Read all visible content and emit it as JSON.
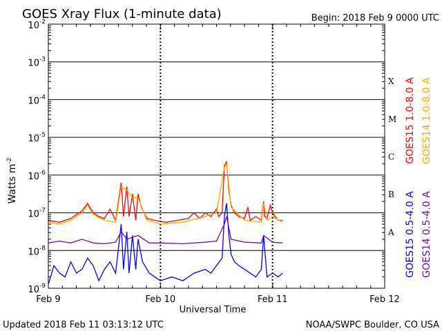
{
  "chart_data": {
    "type": "line",
    "title": "GOES Xray Flux (1-minute data)",
    "begin": "Begin:  2018 Feb 9 0000 UTC",
    "ylabel": "Watts m",
    "ylabel_sup": "-2",
    "xlabel": "Universal Time",
    "updated": "Updated 2018 Feb 11 03:13:12 UTC",
    "credit": "NOAA/SWPC Boulder, CO USA",
    "yscale": "log",
    "ylim_exp": [
      -9,
      -2
    ],
    "xlim_days": [
      0,
      3
    ],
    "y_ticks": [
      {
        "exp": -9,
        "label": "-9"
      },
      {
        "exp": -8,
        "label": "-8"
      },
      {
        "exp": -7,
        "label": "-7"
      },
      {
        "exp": -6,
        "label": "-6"
      },
      {
        "exp": -5,
        "label": "-5"
      },
      {
        "exp": -4,
        "label": "-4"
      },
      {
        "exp": -3,
        "label": "-3"
      },
      {
        "exp": -2,
        "label": "-2"
      }
    ],
    "x_ticks": [
      {
        "day": 0,
        "label": "Feb 9"
      },
      {
        "day": 1,
        "label": "Feb 10"
      },
      {
        "day": 2,
        "label": "Feb 11"
      },
      {
        "day": 3,
        "label": "Feb 12"
      }
    ],
    "flare_classes": [
      {
        "label": "A",
        "exp": -7.5
      },
      {
        "label": "B",
        "exp": -6.5
      },
      {
        "label": "C",
        "exp": -5.5
      },
      {
        "label": "M",
        "exp": -4.5
      },
      {
        "label": "X",
        "exp": -3.5
      }
    ],
    "series": [
      {
        "name": "GOES15 1.0-8.0 A",
        "color": "#ff0000",
        "points": [
          [
            0,
            -7.2
          ],
          [
            0.1,
            -7.25
          ],
          [
            0.2,
            -7.15
          ],
          [
            0.3,
            -6.95
          ],
          [
            0.35,
            -6.75
          ],
          [
            0.4,
            -7.0
          ],
          [
            0.45,
            -7.1
          ],
          [
            0.5,
            -7.15
          ],
          [
            0.55,
            -6.9
          ],
          [
            0.6,
            -7.2
          ],
          [
            0.65,
            -6.2
          ],
          [
            0.67,
            -7.1
          ],
          [
            0.7,
            -6.3
          ],
          [
            0.72,
            -7.1
          ],
          [
            0.75,
            -6.5
          ],
          [
            0.78,
            -7.2
          ],
          [
            0.8,
            -6.5
          ],
          [
            0.83,
            -6.85
          ],
          [
            0.88,
            -7.15
          ],
          [
            0.95,
            -7.2
          ],
          [
            1.05,
            -7.25
          ],
          [
            1.15,
            -7.2
          ],
          [
            1.25,
            -7.15
          ],
          [
            1.3,
            -7.0
          ],
          [
            1.35,
            -7.15
          ],
          [
            1.4,
            -7.0
          ],
          [
            1.45,
            -7.1
          ],
          [
            1.5,
            -6.9
          ],
          [
            1.52,
            -7.1
          ],
          [
            1.55,
            -7.0
          ],
          [
            1.57,
            -5.75
          ],
          [
            1.59,
            -5.65
          ],
          [
            1.61,
            -6.4
          ],
          [
            1.63,
            -6.8
          ],
          [
            1.66,
            -7.0
          ],
          [
            1.7,
            -7.1
          ],
          [
            1.75,
            -7.15
          ],
          [
            1.78,
            -6.85
          ],
          [
            1.8,
            -7.2
          ],
          [
            1.85,
            -7.1
          ],
          [
            1.9,
            -7.2
          ],
          [
            1.92,
            -6.7
          ],
          [
            1.93,
            -7.1
          ],
          [
            1.95,
            -7.15
          ],
          [
            1.98,
            -6.8
          ],
          [
            2.0,
            -7.0
          ],
          [
            2.05,
            -7.2
          ],
          [
            2.09,
            -7.2
          ]
        ]
      },
      {
        "name": "GOES14 1.0-8.0 A",
        "color": "#ffa500",
        "points": [
          [
            0,
            -7.25
          ],
          [
            0.1,
            -7.3
          ],
          [
            0.2,
            -7.2
          ],
          [
            0.3,
            -7.0
          ],
          [
            0.35,
            -6.8
          ],
          [
            0.4,
            -7.05
          ],
          [
            0.5,
            -7.2
          ],
          [
            0.6,
            -7.25
          ],
          [
            0.65,
            -6.3
          ],
          [
            0.7,
            -6.4
          ],
          [
            0.75,
            -6.6
          ],
          [
            0.8,
            -6.6
          ],
          [
            0.88,
            -7.2
          ],
          [
            1.0,
            -7.3
          ],
          [
            1.2,
            -7.25
          ],
          [
            1.4,
            -7.1
          ],
          [
            1.5,
            -7.0
          ],
          [
            1.57,
            -5.8
          ],
          [
            1.59,
            -5.7
          ],
          [
            1.63,
            -6.85
          ],
          [
            1.75,
            -7.2
          ],
          [
            1.9,
            -7.25
          ],
          [
            1.92,
            -6.75
          ],
          [
            1.95,
            -7.2
          ],
          [
            2.0,
            -7.1
          ],
          [
            2.09,
            -7.25
          ]
        ]
      },
      {
        "name": "GOES15 0.5-4.0 A",
        "color": "#0000ff",
        "points": [
          [
            0,
            -8.9
          ],
          [
            0.05,
            -8.4
          ],
          [
            0.1,
            -8.6
          ],
          [
            0.15,
            -8.7
          ],
          [
            0.2,
            -8.3
          ],
          [
            0.25,
            -8.6
          ],
          [
            0.3,
            -8.5
          ],
          [
            0.35,
            -8.2
          ],
          [
            0.4,
            -8.4
          ],
          [
            0.45,
            -8.8
          ],
          [
            0.5,
            -8.5
          ],
          [
            0.55,
            -8.3
          ],
          [
            0.6,
            -8.6
          ],
          [
            0.65,
            -7.3
          ],
          [
            0.67,
            -8.5
          ],
          [
            0.7,
            -7.5
          ],
          [
            0.72,
            -8.6
          ],
          [
            0.75,
            -7.6
          ],
          [
            0.78,
            -8.5
          ],
          [
            0.8,
            -7.7
          ],
          [
            0.84,
            -8.3
          ],
          [
            0.9,
            -8.6
          ],
          [
            1.0,
            -8.8
          ],
          [
            1.1,
            -8.7
          ],
          [
            1.2,
            -8.8
          ],
          [
            1.3,
            -8.6
          ],
          [
            1.4,
            -8.5
          ],
          [
            1.45,
            -8.6
          ],
          [
            1.5,
            -8.4
          ],
          [
            1.55,
            -8.2
          ],
          [
            1.57,
            -7.1
          ],
          [
            1.59,
            -6.75
          ],
          [
            1.61,
            -7.6
          ],
          [
            1.63,
            -8.1
          ],
          [
            1.66,
            -8.3
          ],
          [
            1.7,
            -8.4
          ],
          [
            1.75,
            -8.5
          ],
          [
            1.8,
            -8.6
          ],
          [
            1.85,
            -8.7
          ],
          [
            1.9,
            -8.5
          ],
          [
            1.92,
            -7.6
          ],
          [
            1.95,
            -8.7
          ],
          [
            2.0,
            -8.6
          ],
          [
            2.05,
            -8.7
          ],
          [
            2.09,
            -8.6
          ]
        ]
      },
      {
        "name": "GOES14 0.5-4.0 A",
        "color": "#6a0dad",
        "points": [
          [
            0,
            -7.8
          ],
          [
            0.1,
            -7.75
          ],
          [
            0.2,
            -7.8
          ],
          [
            0.3,
            -7.7
          ],
          [
            0.4,
            -7.8
          ],
          [
            0.5,
            -7.82
          ],
          [
            0.6,
            -7.78
          ],
          [
            0.65,
            -7.5
          ],
          [
            0.7,
            -7.7
          ],
          [
            0.8,
            -7.6
          ],
          [
            0.9,
            -7.8
          ],
          [
            1.0,
            -7.8
          ],
          [
            1.2,
            -7.82
          ],
          [
            1.4,
            -7.78
          ],
          [
            1.5,
            -7.75
          ],
          [
            1.57,
            -7.3
          ],
          [
            1.59,
            -7.1
          ],
          [
            1.63,
            -7.7
          ],
          [
            1.75,
            -7.78
          ],
          [
            1.9,
            -7.8
          ],
          [
            1.92,
            -7.6
          ],
          [
            2.0,
            -7.78
          ],
          [
            2.09,
            -7.8
          ]
        ]
      }
    ]
  }
}
